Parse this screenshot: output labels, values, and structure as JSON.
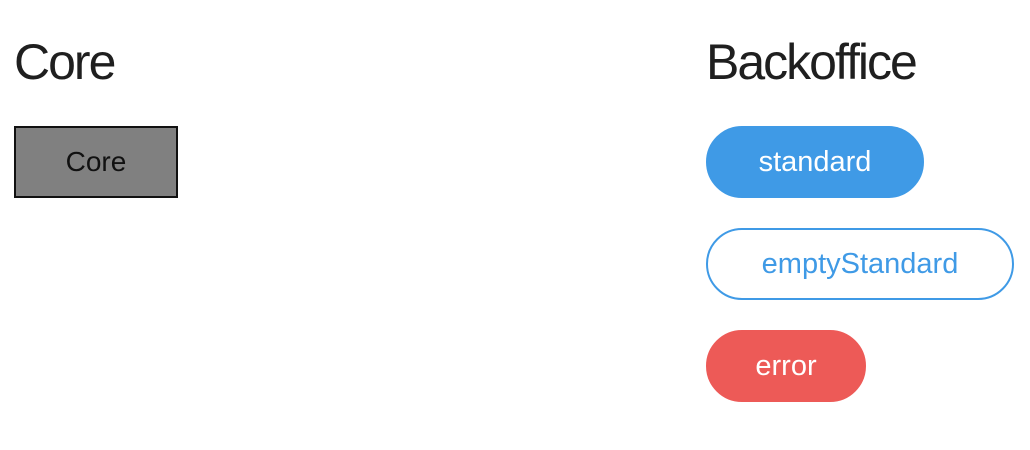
{
  "core": {
    "title": "Core",
    "button_label": "Core",
    "button_bg": "#808080"
  },
  "backoffice": {
    "title": "Backoffice",
    "buttons": [
      {
        "label": "standard",
        "color": "#3f9ae6"
      },
      {
        "label": "emptyStandard",
        "color": "#3f9ae6"
      },
      {
        "label": "error",
        "color": "#ed5a57"
      }
    ]
  }
}
